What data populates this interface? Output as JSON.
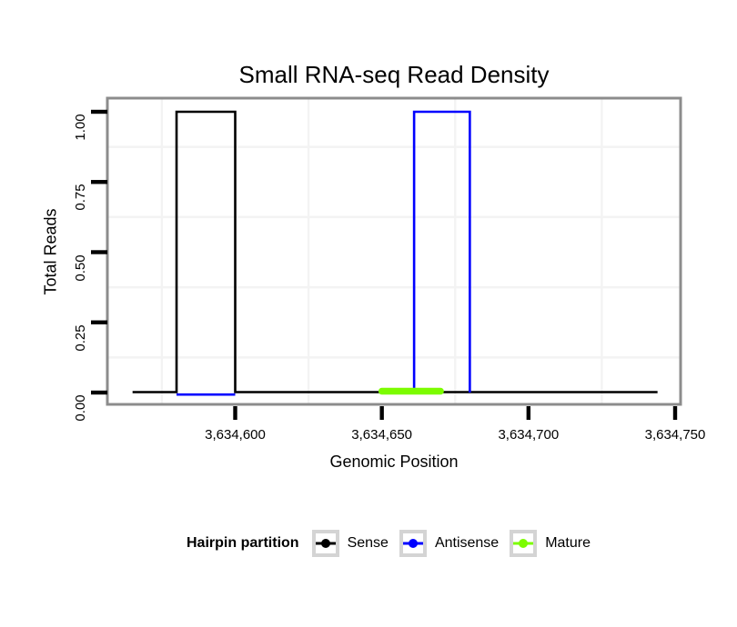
{
  "chart_data": {
    "type": "step",
    "title": "Small RNA-seq Read Density",
    "xlabel": "Genomic Position",
    "ylabel": "Total Reads",
    "x_ticks": [
      {
        "value": 3634600,
        "label": "3,634,600"
      },
      {
        "value": 3634650,
        "label": "3,634,650"
      },
      {
        "value": 3634700,
        "label": "3,634,700"
      },
      {
        "value": 3634750,
        "label": "3,634,750"
      }
    ],
    "y_ticks": [
      {
        "value": 0.0,
        "label": "0.00"
      },
      {
        "value": 0.25,
        "label": "0.25"
      },
      {
        "value": 0.5,
        "label": "0.50"
      },
      {
        "value": 0.75,
        "label": "0.75"
      },
      {
        "value": 1.0,
        "label": "1.00"
      }
    ],
    "x_domain": [
      3634556,
      3634752
    ],
    "y_domain": [
      0,
      1.05
    ],
    "grid": {
      "minor_x": [
        3634575,
        3634625,
        3634675,
        3634725
      ],
      "minor_y": [
        0.125,
        0.375,
        0.625,
        0.875
      ],
      "minor_color": "#f3f3f3",
      "panel_border_color": "#8c8c8c"
    },
    "series": [
      {
        "name": "Sense",
        "color": "#000000",
        "baseline": {
          "start": 3634565,
          "end": 3634744,
          "value": 0
        },
        "peak": {
          "start": 3634580,
          "end": 3634600,
          "value": 1
        }
      },
      {
        "name": "Antisense",
        "color": "#0000ff",
        "baseline_visible": {
          "start": 3634580,
          "end": 3634600,
          "value": 0
        },
        "peak": {
          "start": 3634661,
          "end": 3634680,
          "value": 1
        }
      },
      {
        "name": "Mature",
        "color": "#7cfc00",
        "segment": {
          "start": 3634650,
          "end": 3634670,
          "value": 0
        }
      }
    ],
    "legend": {
      "title": "Hairpin partition",
      "position": "bottom",
      "entries": [
        {
          "label": "Sense",
          "color": "#000000"
        },
        {
          "label": "Antisense",
          "color": "#0000ff"
        },
        {
          "label": "Mature",
          "color": "#7cfc00"
        }
      ]
    }
  }
}
